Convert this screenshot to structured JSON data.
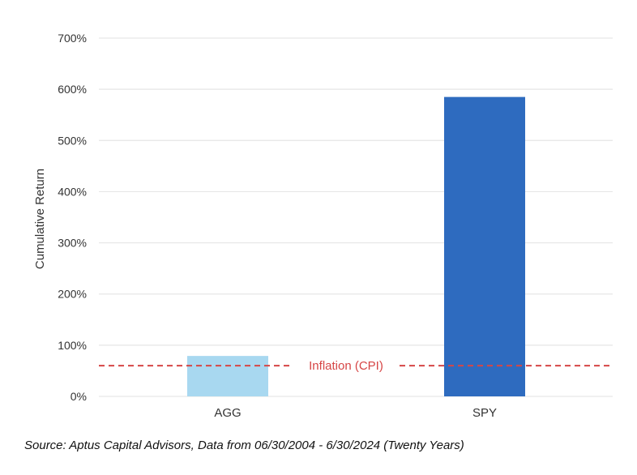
{
  "chart_data": {
    "type": "bar",
    "categories": [
      "AGG",
      "SPY"
    ],
    "values": [
      79,
      585
    ],
    "value_unit": "%",
    "ylabel": "Cumulative Return",
    "ylim": [
      0,
      700
    ],
    "yticks": [
      0,
      100,
      200,
      300,
      400,
      500,
      600,
      700
    ],
    "ytick_labels": [
      "0%",
      "100%",
      "200%",
      "300%",
      "400%",
      "500%",
      "600%",
      "700%"
    ],
    "grid": true,
    "bar_colors": [
      "#a8d8f0",
      "#2e6bbf"
    ],
    "reference_line": {
      "label": "Inflation (CPI)",
      "value": 60,
      "style": "dashed",
      "color": "#d64545"
    },
    "gridline_color": "#e6e6e6"
  },
  "source_note": "Source: Aptus Capital Advisors, Data from 06/30/2004 - 6/30/2024 (Twenty Years)"
}
